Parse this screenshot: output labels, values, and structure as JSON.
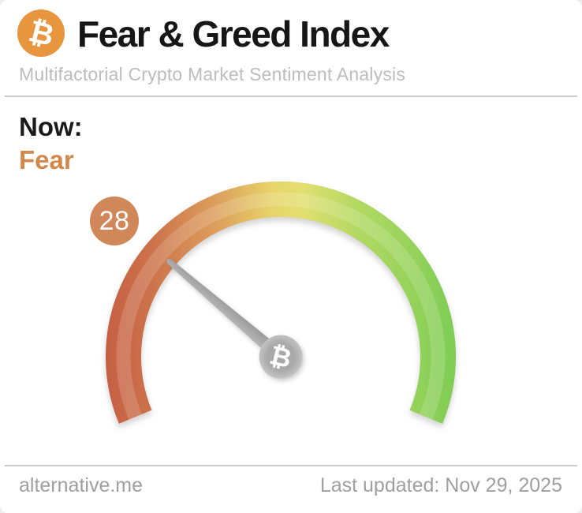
{
  "header": {
    "title": "Fear & Greed Index",
    "subtitle": "Multifactorial Crypto Market Sentiment Analysis",
    "logo_glyph": "₿",
    "logo_color": "#e8953f"
  },
  "status": {
    "label": "Now:",
    "value_text": "Fear",
    "value_color": "#d2884a"
  },
  "gauge": {
    "value": 28,
    "min": 0,
    "max": 100,
    "start_angle_deg": 202.5,
    "sweep_deg": 225,
    "badge_color": "#d0885a",
    "needle_color": "#a8a8a8",
    "hub_glyph": "₿"
  },
  "footer": {
    "source": "alternative.me",
    "last_updated": "Last updated: Nov 29, 2025"
  },
  "chart_data": {
    "type": "gauge",
    "title": "Fear & Greed Index",
    "subtitle": "Multifactorial Crypto Market Sentiment Analysis",
    "value": 28,
    "classification": "Fear",
    "range": [
      0,
      100
    ],
    "gauge_start_angle_deg": 202.5,
    "gauge_sweep_deg": 225,
    "color_scale": [
      {
        "offset": 0.0,
        "color": "#c55f44"
      },
      {
        "offset": 0.14,
        "color": "#cd744b"
      },
      {
        "offset": 0.32,
        "color": "#dda05c"
      },
      {
        "offset": 0.48,
        "color": "#e7d569"
      },
      {
        "offset": 0.56,
        "color": "#e3df70"
      },
      {
        "offset": 0.72,
        "color": "#b2d962"
      },
      {
        "offset": 1.0,
        "color": "#7ecd55"
      }
    ],
    "last_updated": "Nov 29, 2025",
    "source": "alternative.me"
  }
}
